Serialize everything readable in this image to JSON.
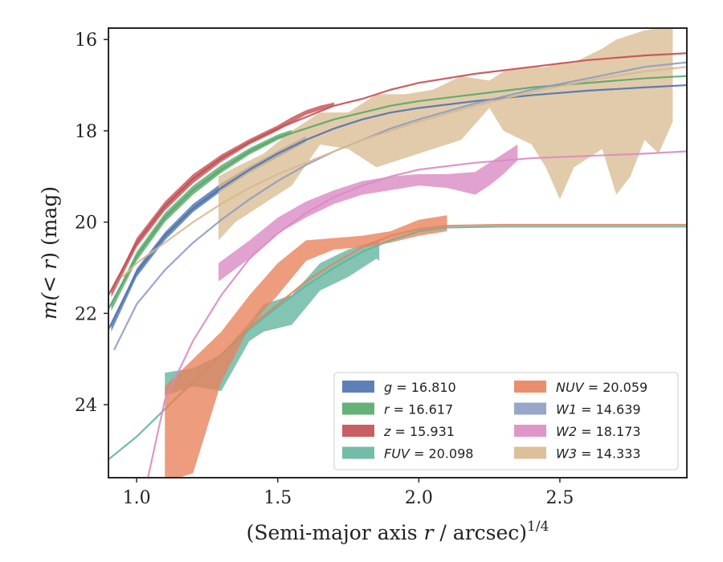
{
  "chart_data": {
    "type": "line",
    "xlabel_main": "(Semi-major axis ",
    "xlabel_var": "r",
    "xlabel_unit": " / arcsec)",
    "xlabel_sup": "1/4",
    "ylabel_main": "m(",
    "ylabel_var": "< r",
    "ylabel_tail": ") (mag)",
    "xlim": [
      0.9,
      2.95
    ],
    "ylim": [
      25.6,
      15.75
    ],
    "y_inverted": true,
    "xticks": [
      1.0,
      1.5,
      2.0,
      2.5
    ],
    "xtick_labels": [
      "1.0",
      "1.5",
      "2.0",
      "2.5"
    ],
    "yticks": [
      16,
      18,
      20,
      22,
      24
    ],
    "ytick_labels": [
      "16",
      "18",
      "20",
      "22",
      "24"
    ],
    "grid": false,
    "legend_placement": "lower-right",
    "legend_columns": 2,
    "series": [
      {
        "name": "g = 16.810",
        "band": "g",
        "value": "16.810",
        "color": "#4c72b0",
        "model": [
          [
            0.9,
            22.35
          ],
          [
            1.0,
            21.1
          ],
          [
            1.1,
            20.3
          ],
          [
            1.2,
            19.7
          ],
          [
            1.3,
            19.25
          ],
          [
            1.4,
            18.85
          ],
          [
            1.5,
            18.5
          ],
          [
            1.6,
            18.2
          ],
          [
            1.7,
            17.95
          ],
          [
            1.8,
            17.75
          ],
          [
            1.9,
            17.6
          ],
          [
            2.0,
            17.5
          ],
          [
            2.2,
            17.35
          ],
          [
            2.4,
            17.22
          ],
          [
            2.6,
            17.12
          ],
          [
            2.8,
            17.05
          ],
          [
            2.95,
            17.0
          ]
        ],
        "band_data": [
          [
            0.91,
            22.4,
            22.25
          ],
          [
            1.0,
            21.2,
            21.02
          ],
          [
            1.1,
            20.4,
            20.22
          ],
          [
            1.2,
            19.78,
            19.6
          ],
          [
            1.3,
            19.32,
            19.15
          ],
          [
            1.4,
            18.92,
            18.78
          ],
          [
            1.5,
            18.58,
            18.44
          ],
          [
            1.6,
            18.25,
            18.12
          ]
        ]
      },
      {
        "name": "r = 16.617",
        "band": "r",
        "value": "16.617",
        "color": "#55a868",
        "model": [
          [
            0.9,
            21.9
          ],
          [
            1.0,
            20.75
          ],
          [
            1.1,
            19.9
          ],
          [
            1.2,
            19.3
          ],
          [
            1.3,
            18.85
          ],
          [
            1.4,
            18.45
          ],
          [
            1.5,
            18.15
          ],
          [
            1.6,
            17.95
          ],
          [
            1.7,
            17.75
          ],
          [
            1.8,
            17.6
          ],
          [
            1.9,
            17.45
          ],
          [
            2.0,
            17.35
          ],
          [
            2.2,
            17.2
          ],
          [
            2.4,
            17.05
          ],
          [
            2.6,
            16.95
          ],
          [
            2.8,
            16.85
          ],
          [
            2.95,
            16.8
          ]
        ],
        "band_data": [
          [
            0.91,
            21.95,
            21.8
          ],
          [
            1.0,
            20.85,
            20.65
          ],
          [
            1.1,
            20.0,
            19.8
          ],
          [
            1.2,
            19.4,
            19.2
          ],
          [
            1.3,
            18.92,
            18.75
          ],
          [
            1.4,
            18.52,
            18.38
          ],
          [
            1.5,
            18.2,
            18.08
          ],
          [
            1.55,
            18.08,
            17.98
          ]
        ]
      },
      {
        "name": "z = 15.931",
        "band": "z",
        "value": "15.931",
        "color": "#c44e52",
        "model": [
          [
            0.9,
            21.6
          ],
          [
            1.0,
            20.45
          ],
          [
            1.1,
            19.65
          ],
          [
            1.2,
            19.05
          ],
          [
            1.3,
            18.6
          ],
          [
            1.4,
            18.25
          ],
          [
            1.5,
            17.95
          ],
          [
            1.6,
            17.7
          ],
          [
            1.7,
            17.45
          ],
          [
            1.8,
            17.3
          ],
          [
            1.9,
            17.1
          ],
          [
            2.0,
            16.95
          ],
          [
            2.2,
            16.75
          ],
          [
            2.4,
            16.6
          ],
          [
            2.6,
            16.45
          ],
          [
            2.8,
            16.35
          ],
          [
            2.95,
            16.3
          ]
        ],
        "band_data": [
          [
            0.91,
            21.65,
            21.5
          ],
          [
            1.0,
            20.55,
            20.35
          ],
          [
            1.1,
            19.75,
            19.55
          ],
          [
            1.2,
            19.15,
            18.95
          ],
          [
            1.3,
            18.68,
            18.52
          ],
          [
            1.4,
            18.3,
            18.18
          ],
          [
            1.5,
            18.0,
            17.88
          ],
          [
            1.55,
            17.82,
            17.7
          ],
          [
            1.6,
            17.65,
            17.55
          ],
          [
            1.65,
            17.55,
            17.45
          ],
          [
            1.7,
            17.45,
            17.38
          ]
        ]
      },
      {
        "name": "FUV = 20.098",
        "band": "FUV",
        "value": "20.098",
        "color": "#64b5a0",
        "model": [
          [
            0.9,
            25.2
          ],
          [
            1.0,
            24.7
          ],
          [
            1.1,
            24.1
          ],
          [
            1.2,
            23.5
          ],
          [
            1.3,
            22.9
          ],
          [
            1.4,
            22.35
          ],
          [
            1.5,
            21.85
          ],
          [
            1.6,
            21.4
          ],
          [
            1.7,
            21.0
          ],
          [
            1.8,
            20.65
          ],
          [
            1.9,
            20.4
          ],
          [
            2.0,
            20.2
          ],
          [
            2.1,
            20.12
          ],
          [
            2.3,
            20.1
          ],
          [
            2.6,
            20.1
          ],
          [
            2.95,
            20.1
          ]
        ],
        "band_data": [
          [
            1.1,
            23.3,
            23.8
          ],
          [
            1.2,
            23.2,
            23.6
          ],
          [
            1.3,
            22.9,
            23.7
          ],
          [
            1.4,
            22.2,
            22.6
          ],
          [
            1.45,
            21.8,
            22.4
          ],
          [
            1.55,
            21.6,
            22.25
          ],
          [
            1.65,
            20.9,
            21.5
          ],
          [
            1.75,
            20.6,
            21.2
          ],
          [
            1.85,
            20.4,
            20.8
          ],
          [
            1.86,
            20.4,
            20.85
          ]
        ]
      },
      {
        "name": "NUV = 20.059",
        "band": "NUV",
        "value": "20.059",
        "color": "#e8835d",
        "model": [
          [
            1.1,
            24.1
          ],
          [
            1.2,
            23.5
          ],
          [
            1.3,
            22.9
          ],
          [
            1.4,
            22.3
          ],
          [
            1.5,
            21.8
          ],
          [
            1.6,
            21.3
          ],
          [
            1.7,
            20.9
          ],
          [
            1.8,
            20.55
          ],
          [
            1.9,
            20.3
          ],
          [
            2.0,
            20.15
          ],
          [
            2.1,
            20.08
          ],
          [
            2.3,
            20.06
          ],
          [
            2.6,
            20.06
          ],
          [
            2.95,
            20.06
          ]
        ],
        "band_data": [
          [
            1.1,
            23.6,
            25.7
          ],
          [
            1.2,
            23.0,
            25.5
          ],
          [
            1.3,
            22.4,
            23.5
          ],
          [
            1.4,
            21.6,
            22.3
          ],
          [
            1.5,
            20.9,
            21.6
          ],
          [
            1.6,
            20.4,
            20.85
          ],
          [
            1.7,
            20.35,
            20.6
          ],
          [
            1.8,
            20.3,
            20.55
          ],
          [
            1.9,
            20.2,
            20.45
          ],
          [
            2.0,
            19.95,
            20.3
          ],
          [
            2.1,
            19.85,
            20.2
          ]
        ]
      },
      {
        "name": "W1 = 14.639",
        "band": "W1",
        "value": "14.639",
        "color": "#8c9dc4",
        "model": [
          [
            0.92,
            22.8
          ],
          [
            1.0,
            21.8
          ],
          [
            1.1,
            21.05
          ],
          [
            1.2,
            20.45
          ],
          [
            1.3,
            19.95
          ],
          [
            1.4,
            19.5
          ],
          [
            1.5,
            19.1
          ],
          [
            1.6,
            18.75
          ],
          [
            1.7,
            18.45
          ],
          [
            1.8,
            18.2
          ],
          [
            1.9,
            17.95
          ],
          [
            2.0,
            17.75
          ],
          [
            2.2,
            17.4
          ],
          [
            2.4,
            17.1
          ],
          [
            2.6,
            16.85
          ],
          [
            2.8,
            16.6
          ],
          [
            2.95,
            16.5
          ]
        ],
        "band_data": []
      },
      {
        "name": "W2 = 18.173",
        "band": "W2",
        "value": "18.173",
        "color": "#da8bc3",
        "model": [
          [
            1.04,
            25.6
          ],
          [
            1.1,
            23.9
          ],
          [
            1.2,
            22.6
          ],
          [
            1.3,
            21.6
          ],
          [
            1.4,
            20.8
          ],
          [
            1.5,
            20.25
          ],
          [
            1.6,
            19.8
          ],
          [
            1.7,
            19.45
          ],
          [
            1.8,
            19.2
          ],
          [
            1.9,
            19.0
          ],
          [
            2.0,
            18.85
          ],
          [
            2.2,
            18.7
          ],
          [
            2.4,
            18.6
          ],
          [
            2.6,
            18.55
          ],
          [
            2.8,
            18.5
          ],
          [
            2.95,
            18.45
          ]
        ],
        "band_data": [
          [
            1.29,
            20.9,
            21.3
          ],
          [
            1.4,
            20.4,
            20.8
          ],
          [
            1.5,
            19.9,
            20.25
          ],
          [
            1.6,
            19.55,
            19.9
          ],
          [
            1.7,
            19.3,
            19.6
          ],
          [
            1.8,
            19.1,
            19.4
          ],
          [
            1.9,
            19.0,
            19.3
          ],
          [
            2.0,
            18.95,
            19.2
          ],
          [
            2.1,
            18.95,
            19.25
          ],
          [
            2.2,
            18.9,
            19.4
          ],
          [
            2.25,
            18.7,
            19.2
          ],
          [
            2.3,
            18.5,
            18.95
          ],
          [
            2.35,
            18.3,
            18.65
          ]
        ]
      },
      {
        "name": "W3 = 14.333",
        "band": "W3",
        "value": "14.333",
        "color": "#d8b98e",
        "model": [
          [
            0.95,
            21.2
          ],
          [
            1.0,
            20.9
          ],
          [
            1.1,
            20.45
          ],
          [
            1.2,
            20.0
          ],
          [
            1.3,
            19.6
          ],
          [
            1.4,
            19.25
          ],
          [
            1.5,
            18.95
          ],
          [
            1.6,
            18.7
          ],
          [
            1.7,
            18.45
          ],
          [
            1.8,
            18.2
          ],
          [
            1.9,
            18.0
          ],
          [
            2.0,
            17.8
          ],
          [
            2.2,
            17.45
          ],
          [
            2.4,
            17.15
          ],
          [
            2.6,
            16.9
          ],
          [
            2.8,
            16.7
          ],
          [
            2.95,
            16.6
          ]
        ],
        "band_data": [
          [
            1.29,
            19.0,
            20.4
          ],
          [
            1.35,
            18.8,
            20.0
          ],
          [
            1.45,
            18.5,
            19.6
          ],
          [
            1.55,
            18.0,
            19.2
          ],
          [
            1.65,
            17.6,
            18.3
          ],
          [
            1.75,
            17.6,
            18.4
          ],
          [
            1.85,
            17.2,
            18.8
          ],
          [
            1.95,
            17.2,
            18.6
          ],
          [
            2.05,
            17.1,
            18.4
          ],
          [
            2.15,
            16.8,
            18.2
          ],
          [
            2.25,
            16.9,
            17.5
          ],
          [
            2.3,
            16.7,
            18.0
          ],
          [
            2.4,
            16.6,
            18.3
          ],
          [
            2.45,
            16.6,
            18.8
          ],
          [
            2.5,
            16.5,
            19.5
          ],
          [
            2.55,
            16.5,
            18.8
          ],
          [
            2.65,
            16.2,
            18.4
          ],
          [
            2.7,
            16.0,
            19.4
          ],
          [
            2.75,
            15.9,
            19.0
          ],
          [
            2.8,
            15.8,
            18.2
          ],
          [
            2.85,
            15.75,
            18.5
          ],
          [
            2.9,
            15.75,
            17.8
          ]
        ]
      }
    ]
  }
}
